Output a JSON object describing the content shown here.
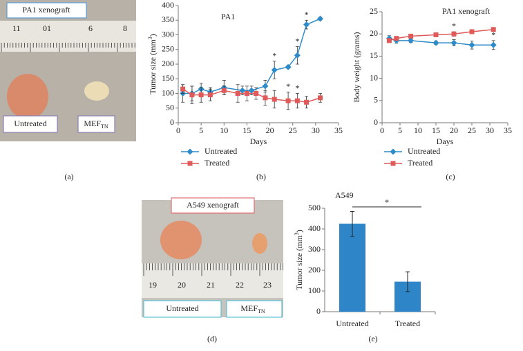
{
  "photos": [
    {
      "label": "PA1 xenograft",
      "left": "Untreated",
      "right": {
        "text": "MEF",
        "sub": "TN"
      },
      "ruler": [
        "11",
        "01",
        "6",
        "8"
      ]
    },
    {
      "label": "A549 xenograft",
      "left": "Untreated",
      "right": {
        "text": "MEF",
        "sub": "TN"
      },
      "ruler": [
        "19",
        "20",
        "21",
        "22",
        "23"
      ]
    }
  ],
  "panel_labels": [
    "(a)",
    "(b)",
    "(c)",
    "(d)",
    "(e)"
  ],
  "chart_data": [
    {
      "type": "line",
      "title": "PA1",
      "x_label": "Days",
      "y_label": {
        "text": "Tumor size (mm",
        "sup": "3",
        "end": ")"
      },
      "xlim": [
        0,
        35
      ],
      "xticks": [
        0,
        5,
        10,
        15,
        20,
        25,
        30,
        35
      ],
      "ylim": [
        0,
        400
      ],
      "yticks": [
        0,
        50,
        100,
        150,
        200,
        250,
        300,
        350,
        400
      ],
      "series": [
        {
          "name": "Untreated",
          "color": "#2e8bc9",
          "marker": "diamond",
          "x": [
            1,
            3,
            5,
            7,
            10,
            14,
            16,
            19,
            21,
            24,
            26,
            28,
            31
          ],
          "values": [
            100,
            100,
            115,
            105,
            120,
            110,
            110,
            125,
            180,
            190,
            230,
            335,
            355
          ],
          "errors": [
            30,
            25,
            20,
            15,
            25,
            15,
            15,
            20,
            30,
            5,
            30,
            15,
            5
          ]
        },
        {
          "name": "Treated",
          "color": "#e05a5a",
          "marker": "square",
          "x": [
            1,
            3,
            5,
            7,
            10,
            13,
            15,
            17,
            19,
            21,
            24,
            26,
            28,
            31
          ],
          "values": [
            115,
            95,
            95,
            95,
            110,
            100,
            100,
            100,
            85,
            80,
            75,
            75,
            70,
            85
          ],
          "errors": [
            15,
            30,
            25,
            20,
            15,
            30,
            25,
            20,
            25,
            30,
            30,
            25,
            20,
            15
          ]
        }
      ],
      "annotations": [
        {
          "text": "*",
          "series": 0,
          "index": 8
        },
        {
          "text": "*",
          "series": 0,
          "index": 10
        },
        {
          "text": "*",
          "series": 0,
          "index": 11
        },
        {
          "text": "*",
          "series": 1,
          "index": 10
        },
        {
          "text": "*",
          "series": 1,
          "index": 11
        }
      ]
    },
    {
      "type": "line",
      "title": "PA1 xenograft",
      "x_label": "Days",
      "y_label": {
        "text": "Body weight (grams)"
      },
      "xlim": [
        0,
        35
      ],
      "xticks": [
        0,
        5,
        10,
        15,
        20,
        25,
        30,
        35
      ],
      "ylim": [
        0,
        25
      ],
      "yticks": [
        0,
        5,
        10,
        15,
        20,
        25
      ],
      "series": [
        {
          "name": "Untreated",
          "color": "#2e8bc9",
          "marker": "diamond",
          "x": [
            2,
            4,
            8,
            15,
            20,
            25,
            31
          ],
          "values": [
            19,
            18.5,
            18.5,
            18,
            18,
            17.5,
            17.5
          ],
          "errors": [
            0.6,
            0.6,
            0.4,
            0.4,
            0.7,
            0.9,
            1
          ]
        },
        {
          "name": "Treated",
          "color": "#e05a5a",
          "marker": "square",
          "x": [
            2,
            4,
            8,
            15,
            20,
            25,
            31
          ],
          "values": [
            18.5,
            19,
            19.5,
            19.8,
            20,
            20.5,
            21
          ],
          "errors": [
            0.4,
            0.4,
            0.4,
            0.4,
            0.5,
            0.4,
            0.4
          ]
        }
      ],
      "annotations": [
        {
          "text": "*",
          "series": 1,
          "index": 4
        },
        {
          "text": "*",
          "series": 0,
          "index": 6
        }
      ]
    },
    {
      "type": "bar",
      "title": "A549",
      "y_label": {
        "text": "Tumor size (mm",
        "sup": "3",
        "end": ")"
      },
      "categories": [
        "Untreated",
        "Treated"
      ],
      "values": [
        425,
        145
      ],
      "errors": [
        60,
        48
      ],
      "color": "#2e86c8",
      "ylim": [
        0,
        500
      ],
      "yticks": [
        0,
        100,
        200,
        300,
        400,
        500
      ],
      "annotations": [
        {
          "text": "*",
          "between": [
            0,
            1
          ]
        }
      ]
    }
  ]
}
